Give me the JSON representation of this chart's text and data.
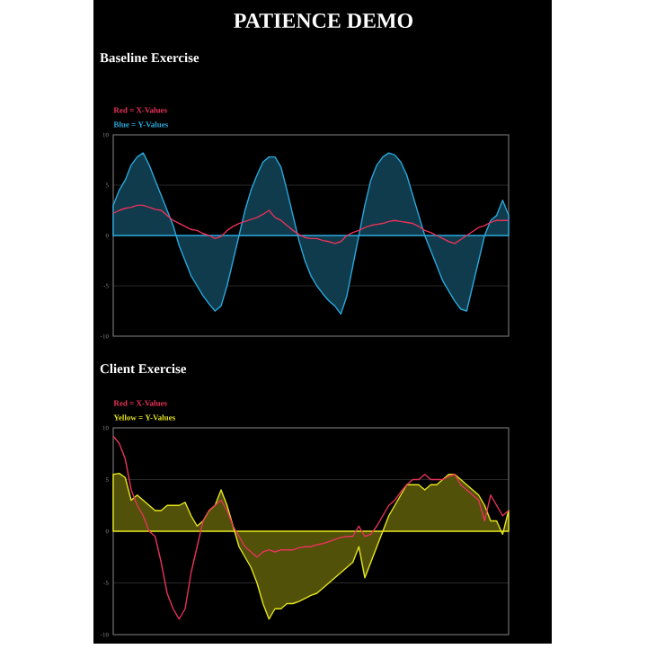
{
  "chart_data": [
    {
      "type": "area",
      "title": "PATIENCE DEMO",
      "subtitle": "Baseline Exercise",
      "legend": "top left",
      "grid": "y",
      "categories": [
        null,
        null,
        null,
        null,
        null,
        null,
        null,
        null,
        null,
        null,
        null,
        null,
        null,
        null,
        null,
        null,
        null,
        null,
        null,
        null,
        null,
        null,
        null,
        null,
        null,
        null,
        null,
        null,
        null,
        null,
        null,
        null,
        null,
        null,
        null,
        null,
        null,
        null,
        null,
        null,
        null,
        null,
        null,
        null,
        null,
        null,
        null,
        null,
        null,
        null,
        null,
        null,
        null,
        null,
        null,
        null,
        null,
        null,
        null,
        null,
        null,
        null,
        null,
        null,
        null,
        null,
        null
      ],
      "ylim": [
        -10,
        10
      ],
      "yticks": [
        -10,
        -5,
        0,
        5,
        10
      ],
      "series": [
        {
          "name": "Blue = Y-Values",
          "color": "#2aa9db",
          "values": [
            3,
            4.5,
            5.5,
            7,
            7.8,
            8.2,
            7,
            5.5,
            4,
            2.5,
            1,
            -1,
            -2.5,
            -4,
            -5,
            -6,
            -6.8,
            -7.5,
            -7,
            -5,
            -2.5,
            0,
            2.5,
            4.5,
            6,
            7.3,
            7.8,
            7.8,
            6.8,
            4.5,
            2,
            -0.5,
            -2.5,
            -4,
            -5,
            -5.8,
            -6.5,
            -7,
            -7.8,
            -6,
            -3,
            0,
            3,
            5.5,
            7,
            7.8,
            8.2,
            8,
            7.3,
            6,
            4,
            2,
            0,
            -1.5,
            -3,
            -4.5,
            -5.5,
            -6.5,
            -7.3,
            -7.5,
            -5,
            -2.5,
            0,
            1.5,
            2,
            3.5,
            2
          ]
        },
        {
          "name": "Red = X-Values",
          "type": "line",
          "color": "#e8335a",
          "values": [
            2.2,
            2.5,
            2.7,
            2.8,
            3,
            3,
            2.8,
            2.6,
            2.5,
            2,
            1.5,
            1.2,
            0.9,
            0.6,
            0.5,
            0.2,
            0,
            -0.3,
            -0.1,
            0.5,
            0.9,
            1.2,
            1.4,
            1.6,
            1.8,
            2.1,
            2.5,
            1.8,
            1.5,
            1,
            0.5,
            0.1,
            -0.2,
            -0.3,
            -0.3,
            -0.5,
            -0.6,
            -0.8,
            -0.6,
            0,
            0.3,
            0.5,
            0.8,
            1,
            1.1,
            1.2,
            1.4,
            1.5,
            1.4,
            1.3,
            1.2,
            0.9,
            0.5,
            0.3,
            0,
            -0.3,
            -0.6,
            -0.8,
            -0.4,
            0,
            0.4,
            0.8,
            1,
            1.3,
            1.5,
            1.5,
            1.5
          ]
        }
      ]
    },
    {
      "type": "area",
      "title": "Client Exercise",
      "legend": "top left",
      "grid": "y",
      "categories": [
        null,
        null,
        null,
        null,
        null,
        null,
        null,
        null,
        null,
        null,
        null,
        null,
        null,
        null,
        null,
        null,
        null,
        null,
        null,
        null,
        null,
        null,
        null,
        null,
        null,
        null,
        null,
        null,
        null,
        null,
        null,
        null,
        null,
        null,
        null,
        null,
        null,
        null,
        null,
        null,
        null,
        null,
        null,
        null,
        null,
        null,
        null,
        null,
        null,
        null,
        null,
        null,
        null,
        null,
        null,
        null,
        null,
        null,
        null,
        null,
        null,
        null,
        null,
        null,
        null,
        null,
        null
      ],
      "ylim": [
        -10,
        10
      ],
      "yticks": [
        -10,
        -5,
        0,
        5,
        10
      ],
      "series": [
        {
          "name": "Yellow = Y-Values",
          "color": "#e6e61c",
          "values": [
            5.5,
            5.6,
            5.2,
            3,
            3.5,
            3,
            2.5,
            2,
            2,
            2.5,
            2.5,
            2.5,
            2.8,
            1.5,
            0.5,
            1,
            2,
            2.5,
            4,
            2.5,
            0.5,
            -1.5,
            -2.5,
            -3.5,
            -5,
            -7,
            -8.5,
            -7.5,
            -7.5,
            -7,
            -7,
            -6.8,
            -6.5,
            -6.2,
            -6,
            -5.5,
            -5,
            -4.5,
            -4,
            -3.5,
            -3,
            -1.5,
            -4.5,
            -3,
            -1.5,
            0,
            1.5,
            2.5,
            3.5,
            4.5,
            4.5,
            4.5,
            4,
            4.5,
            4.5,
            5,
            5.5,
            5.5,
            5,
            4.5,
            4,
            3.5,
            2.5,
            1,
            1,
            -0.3,
            2
          ]
        },
        {
          "name": "Red = X-Values",
          "type": "line",
          "color": "#e8335a",
          "values": [
            9.2,
            8.5,
            7,
            4,
            2.5,
            1.5,
            0,
            -0.5,
            -3,
            -6,
            -7.5,
            -8.5,
            -7.5,
            -4,
            -1.5,
            1,
            2,
            2.5,
            3,
            2,
            0.5,
            -0.5,
            -1.5,
            -2,
            -2.5,
            -2,
            -1.8,
            -2,
            -1.8,
            -1.8,
            -1.8,
            -1.6,
            -1.5,
            -1.5,
            -1.3,
            -1.2,
            -1,
            -0.8,
            -0.6,
            -0.5,
            -0.5,
            0.5,
            -0.5,
            -0.3,
            0.5,
            1.5,
            2.5,
            3,
            3.8,
            4.5,
            5,
            5,
            5.5,
            5,
            5,
            5,
            5.3,
            5.5,
            4.5,
            4,
            3.5,
            3,
            1,
            3.5,
            2.5,
            1.5,
            2
          ]
        }
      ]
    }
  ]
}
